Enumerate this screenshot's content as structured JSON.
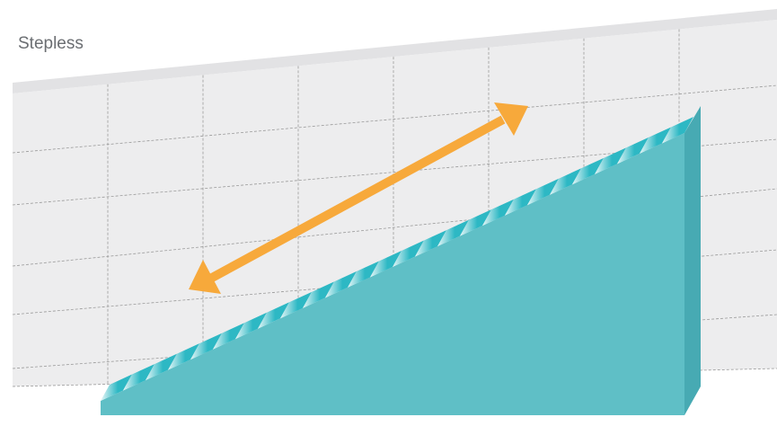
{
  "title": "Stepless",
  "colors": {
    "background": "#ffffff",
    "title_text": "#6b6e72",
    "wall_face": "#ededee",
    "wall_top": "#e2e2e4",
    "grid_line": "#9a9a9a",
    "block_face": "#5fbfc6",
    "block_side": "#47aab3",
    "step_light": "#e6f6f7",
    "step_dark": "#2db8c4",
    "arrow": "#f7a93b"
  },
  "diagram": {
    "wall": {
      "vertical_grid_lines": 7,
      "horizontal_grid_lines": 6
    },
    "staircase": {
      "step_count": 26
    },
    "arrow": {
      "type": "double-headed"
    }
  }
}
